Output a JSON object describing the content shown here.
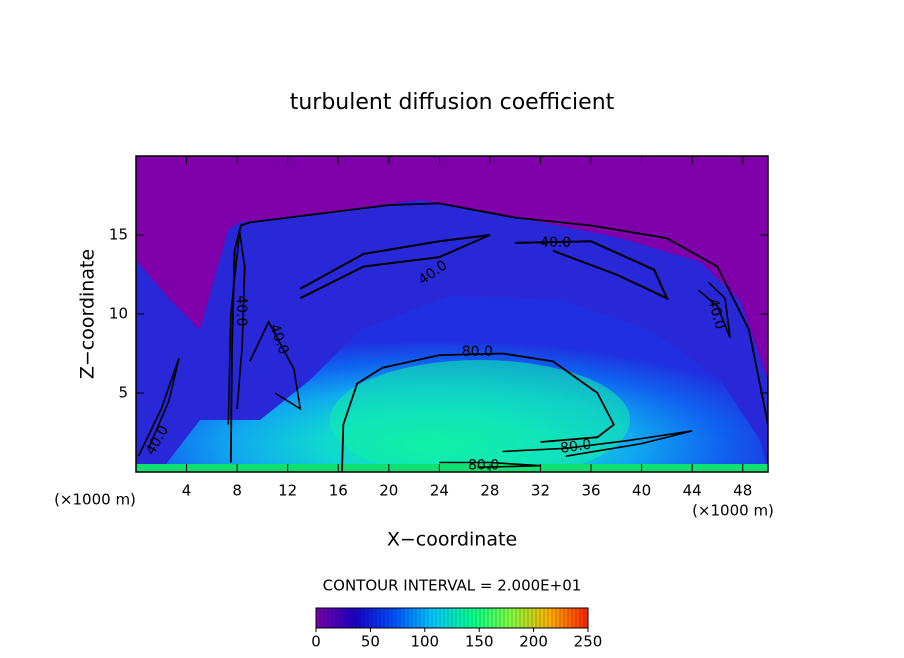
{
  "chart_data": {
    "type": "contour",
    "title": "turbulent diffusion coefficient",
    "x_label": "X−coordinate",
    "y_label": "Z−coordinate",
    "x_unit": "(×1000 m)",
    "y_unit": "(×1000 m)",
    "xlim": [
      0,
      50
    ],
    "xticks": [
      4,
      8,
      12,
      16,
      20,
      24,
      28,
      32,
      36,
      40,
      44,
      48
    ],
    "ylim": [
      0,
      20
    ],
    "yticks": [
      5,
      10,
      15
    ],
    "contour_levels": [
      40,
      80
    ],
    "contour_labels": [
      "40.0",
      "80.0"
    ],
    "contour_interval_text": "CONTOUR INTERVAL = 2.000E+01",
    "clim": [
      0,
      250
    ],
    "cticks": [
      0,
      50,
      100,
      150,
      200,
      250
    ],
    "colormap": [
      "#7a00a8",
      "#1a00c8",
      "#0050ff",
      "#00c8ff",
      "#00ff90",
      "#80ff40",
      "#ffb000",
      "#ff2000"
    ]
  }
}
